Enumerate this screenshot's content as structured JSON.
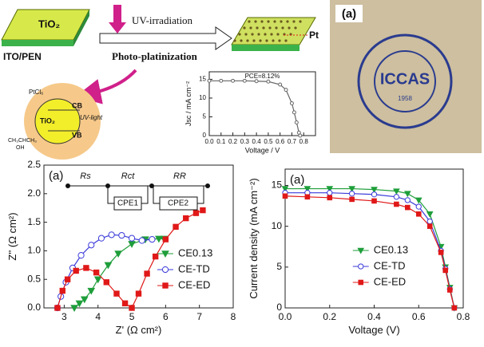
{
  "diagram": {
    "film": "TiO₂",
    "substrate": "ITO/PEN",
    "step1": "UV-irradiation",
    "step2": "Photo-platinization",
    "pt": "Pt",
    "cb": "CB",
    "vb": "VB",
    "particle": "TiO₂",
    "light": "UV-light",
    "precursor": "PtCl₆",
    "donor": "CH₃CHCH₃",
    "donor_group": "OH"
  },
  "photo": {
    "label": "(a)",
    "logo": "ICCAS",
    "year": "1958"
  },
  "chart_data": [
    {
      "type": "line",
      "ylabel": "Jsc / mA cm⁻²",
      "xlabel": "Voltage / V",
      "annotations": [
        "PCE=8.12%"
      ],
      "x": [
        0,
        0.1,
        0.2,
        0.3,
        0.4,
        0.5,
        0.6,
        0.65,
        0.7,
        0.72,
        0.74,
        0.76,
        0.77
      ],
      "series": [
        {
          "color": "#666666",
          "marker": "circle-open",
          "values": [
            14.6,
            14.6,
            14.6,
            14.6,
            14.5,
            14.4,
            13.6,
            12.2,
            8.6,
            6.2,
            3.5,
            0.8,
            0
          ]
        }
      ],
      "xlim": [
        0,
        0.9
      ],
      "ylim": [
        0,
        17
      ],
      "xticks": [
        {
          "value": 0,
          "label": "0.0"
        },
        {
          "value": 0.1,
          "label": "0.1"
        },
        {
          "value": 0.2,
          "label": "0.2"
        },
        {
          "value": 0.3,
          "label": "0.3"
        },
        {
          "value": 0.4,
          "label": "0.4"
        },
        {
          "value": 0.5,
          "label": "0.5"
        },
        {
          "value": 0.6,
          "label": "0.6"
        },
        {
          "value": 0.7,
          "label": "0.7"
        },
        {
          "value": 0.8,
          "label": "0.8"
        }
      ],
      "yticks": [
        0,
        5,
        10,
        15
      ]
    },
    {
      "type": "line",
      "xlabel": "Z' (Ω cm²)",
      "ylabel": "Z'' (Ω cm²)",
      "annotations": [
        "(a)"
      ],
      "circuit_labels": [
        "Rs",
        "Rct",
        "RR",
        "CPE1",
        "CPE2"
      ],
      "legend": "center right",
      "series": [
        {
          "name": "CE0.13",
          "color": "#1e9e3a",
          "marker": "triangle-down",
          "x": [
            3.3,
            3.45,
            3.6,
            3.8,
            4.0,
            4.3,
            4.6,
            5.0,
            5.4,
            5.8,
            5.95
          ],
          "values": [
            0,
            0.08,
            0.15,
            0.3,
            0.5,
            0.75,
            0.95,
            1.12,
            1.2,
            1.21,
            1.21
          ]
        },
        {
          "name": "CE-TD",
          "color": "#3a3adb",
          "marker": "circle-open",
          "x": [
            2.8,
            2.9,
            3.05,
            3.25,
            3.5,
            3.8,
            4.1,
            4.4,
            4.7,
            5.0,
            5.3,
            5.6
          ],
          "values": [
            0,
            0.2,
            0.45,
            0.7,
            0.92,
            1.1,
            1.22,
            1.28,
            1.27,
            1.22,
            1.18,
            1.2
          ]
        },
        {
          "name": "CE-ED",
          "color": "#e01818",
          "marker": "square",
          "x": [
            2.8,
            2.95,
            3.1,
            3.35,
            3.65,
            3.95,
            4.25,
            4.55,
            4.8,
            5.0,
            5.2,
            5.45,
            5.7,
            6.0,
            6.3,
            6.6,
            6.9,
            7.1
          ],
          "values": [
            0,
            0.3,
            0.5,
            0.65,
            0.7,
            0.62,
            0.45,
            0.25,
            0.08,
            0,
            0.25,
            0.6,
            0.9,
            1.2,
            1.42,
            1.57,
            1.66,
            1.71
          ]
        }
      ],
      "xlim": [
        2.4,
        8
      ],
      "ylim": [
        0,
        2.5
      ],
      "xticks": [
        3,
        4,
        5,
        6,
        7,
        8
      ],
      "yticks": [
        {
          "value": 0,
          "label": "0.0"
        },
        {
          "value": 0.5,
          "label": "0.5"
        },
        {
          "value": 1,
          "label": "1.0"
        },
        {
          "value": 1.5,
          "label": "1.5"
        },
        {
          "value": 2,
          "label": "2.0"
        },
        {
          "value": 2.5,
          "label": "2.5"
        }
      ]
    },
    {
      "type": "line",
      "xlabel": "Voltage (V)",
      "ylabel": "Current density (mA cm⁻²)",
      "annotations": [
        "(a)"
      ],
      "legend": "lower center",
      "x": [
        0,
        0.1,
        0.2,
        0.3,
        0.4,
        0.5,
        0.55,
        0.6,
        0.65,
        0.7,
        0.72,
        0.74,
        0.76
      ],
      "series": [
        {
          "name": "CE0.13",
          "color": "#1e9e3a",
          "marker": "triangle-down",
          "values": [
            14.6,
            14.6,
            14.6,
            14.6,
            14.5,
            14.3,
            14.0,
            13.2,
            11.5,
            7.5,
            5.0,
            2.5,
            0
          ]
        },
        {
          "name": "CE-TD",
          "color": "#3a3adb",
          "marker": "circle-open",
          "values": [
            14.1,
            14.1,
            14.1,
            14.0,
            13.9,
            13.6,
            13.2,
            12.4,
            10.6,
            7.0,
            4.8,
            2.3,
            0
          ]
        },
        {
          "name": "CE-ED",
          "color": "#e01818",
          "marker": "square",
          "values": [
            13.7,
            13.6,
            13.5,
            13.3,
            13.1,
            12.7,
            12.3,
            11.5,
            10.0,
            6.8,
            4.6,
            2.2,
            0
          ]
        }
      ],
      "xlim": [
        0,
        0.8
      ],
      "ylim": [
        0,
        17
      ],
      "xticks": [
        {
          "value": 0,
          "label": "0.0"
        },
        {
          "value": 0.2,
          "label": "0.2"
        },
        {
          "value": 0.4,
          "label": "0.4"
        },
        {
          "value": 0.6,
          "label": "0.6"
        },
        {
          "value": 0.8,
          "label": "0.8"
        }
      ],
      "yticks": [
        0,
        5,
        10,
        15
      ]
    }
  ]
}
